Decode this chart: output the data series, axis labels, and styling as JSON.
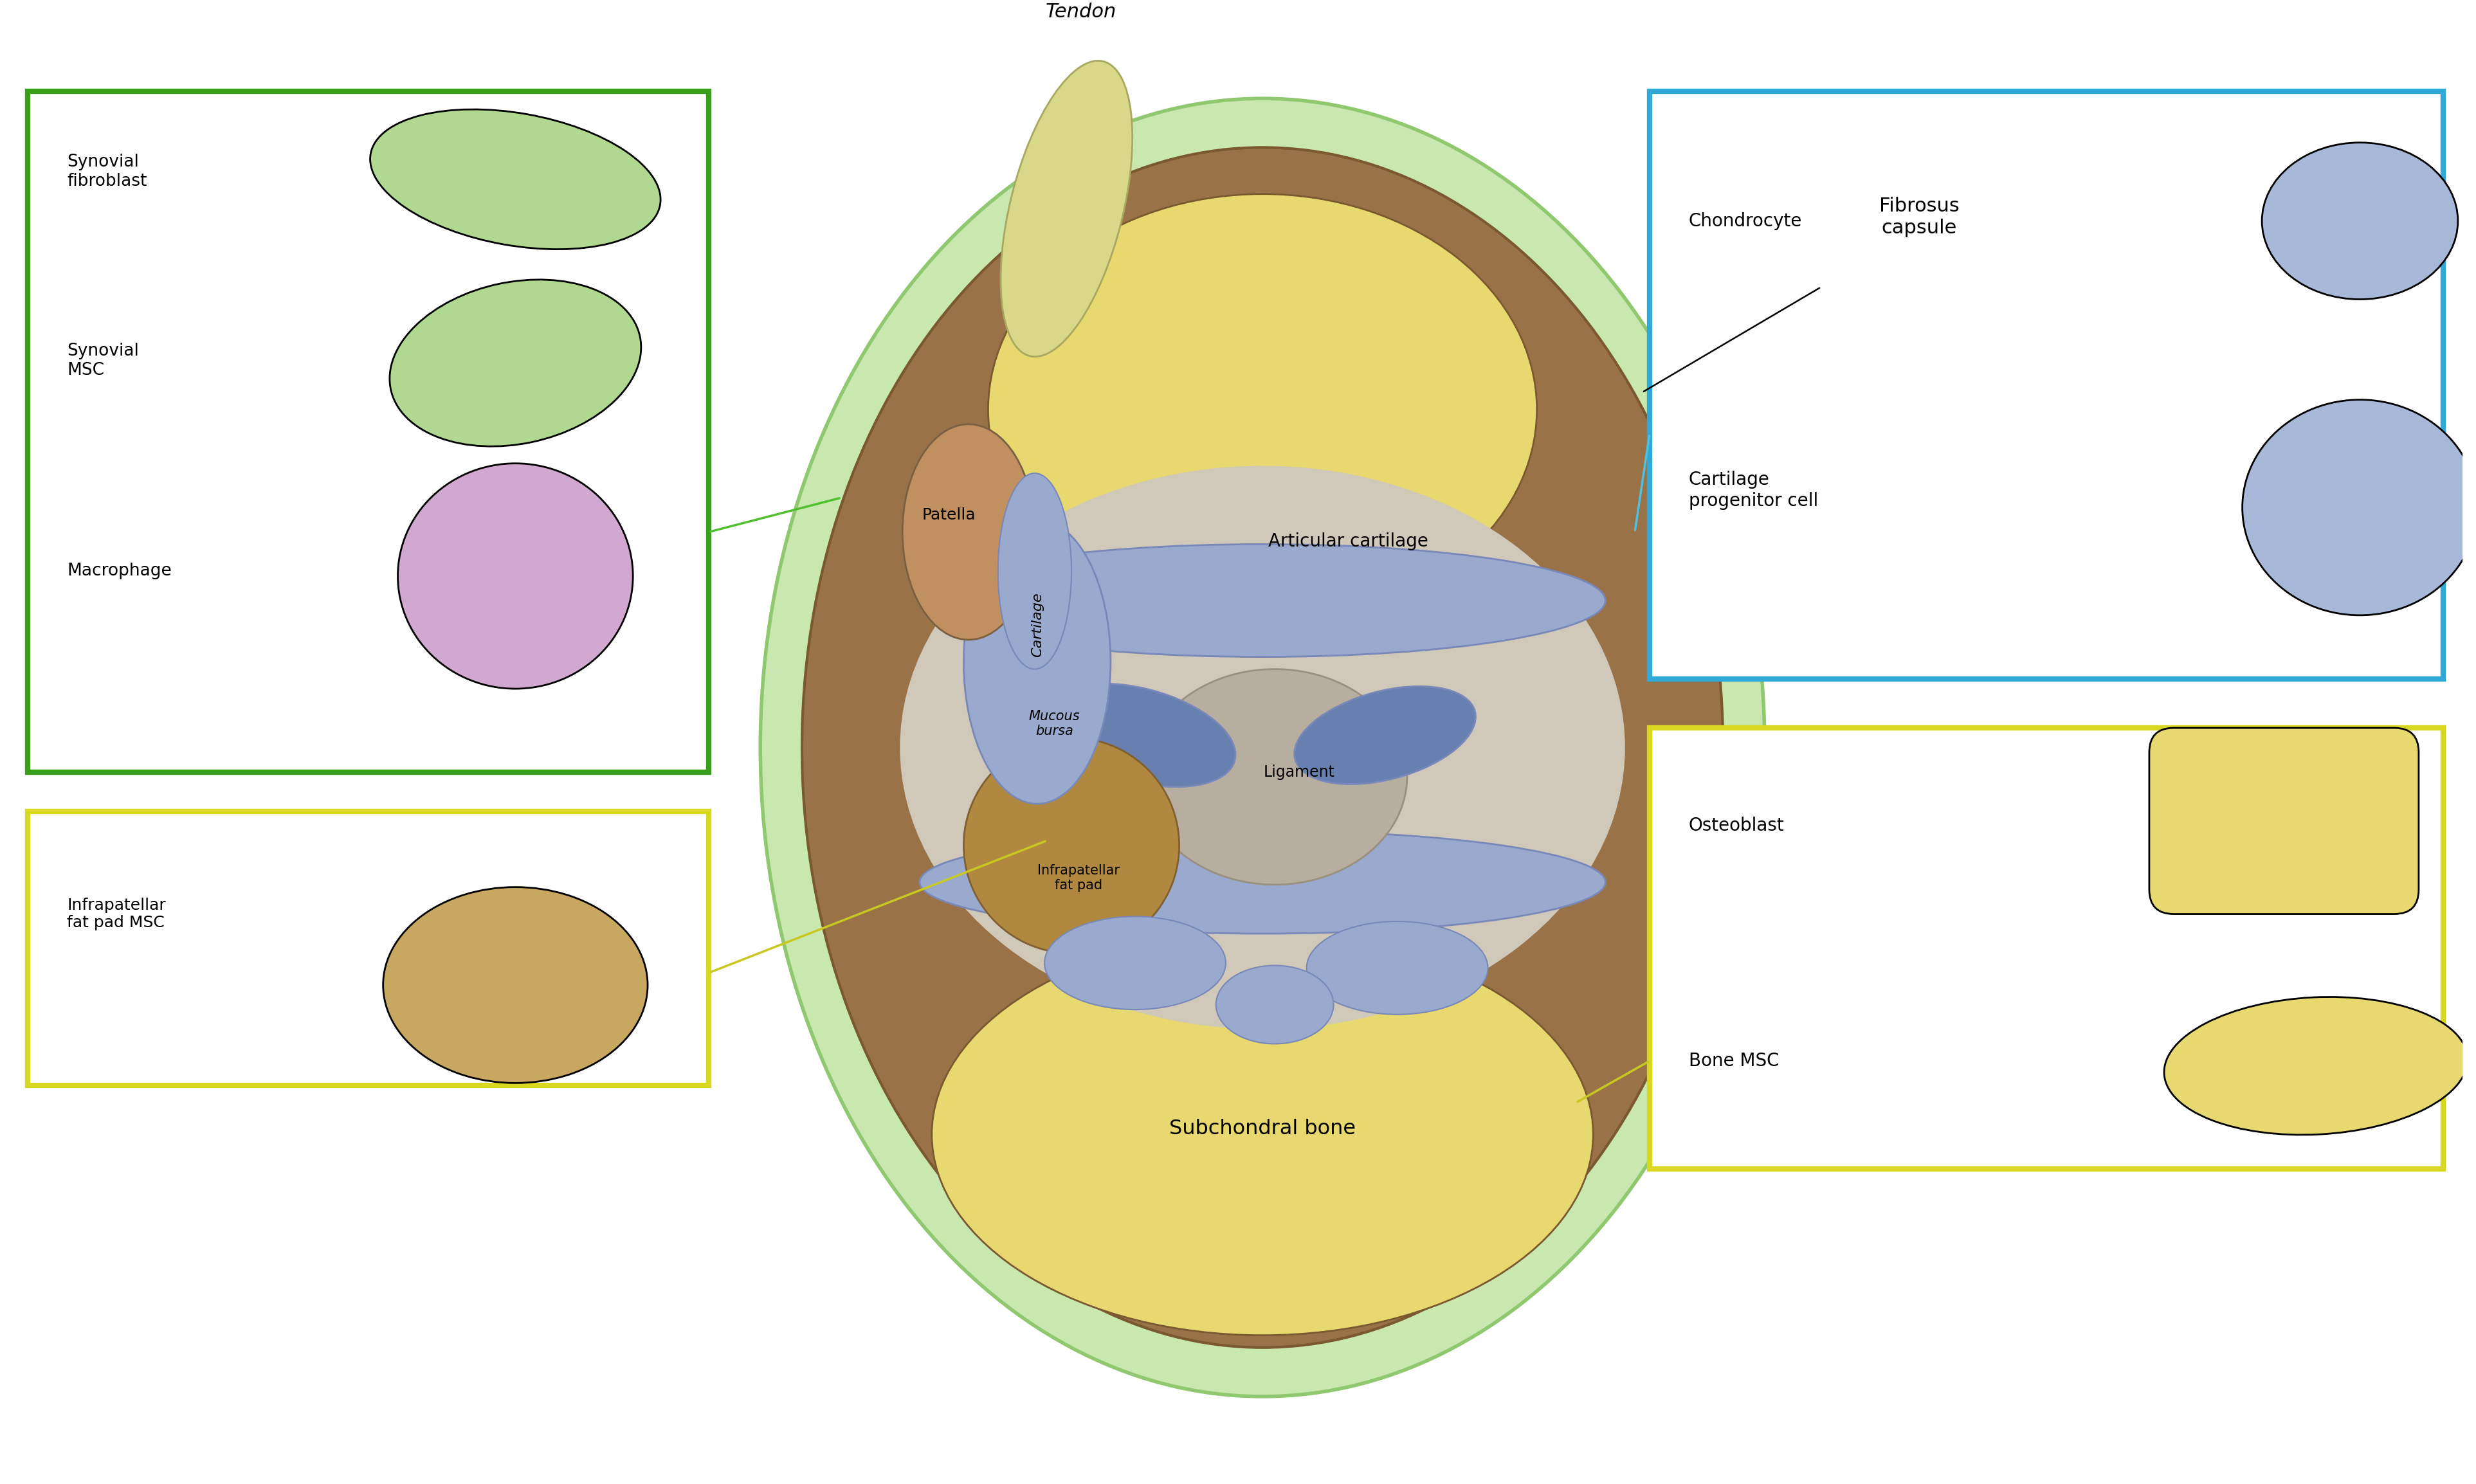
{
  "bg": "#ffffff",
  "c": {
    "bone_yellow": "#e8d870",
    "bone_light": "#f0e898",
    "brown": "#9a7248",
    "brown_dark": "#7a5830",
    "brown_medium": "#b08858",
    "cart_blue": "#7888b8",
    "cart_blue_light": "#99aace",
    "articular_blue": "#6880b0",
    "synovial_green": "#90c870",
    "synovial_light": "#c8e8b0",
    "ligament_gray": "#b8aea0",
    "fat_brown": "#b08840",
    "fat_light": "#c8a860",
    "patella_brown": "#c09060",
    "tendon_yellow": "#d8d888",
    "nucleus": "#1a2858",
    "cell_green": "#b0d890",
    "cell_purple": "#d0a8d0",
    "cell_blue": "#a8b8d8",
    "box_green": "#38a018",
    "box_cyan": "#30a8d8",
    "box_yellow": "#d8d820",
    "arrow_green": "#50c030",
    "arrow_cyan": "#50c0e0",
    "arrow_yellow": "#c8c820",
    "joint_beige": "#d0c8b8",
    "inner_gray": "#c8c0b0"
  },
  "labels": {
    "tendon": "Tendon",
    "patella": "Patella",
    "cartilage": "Cartilage",
    "mucous_bursa": "Mucous\nbursa",
    "infrapatellar": "Infrapatellar\nfat pad",
    "articular_cart": "Articular cartilage",
    "ligament": "Ligament",
    "subchondral": "Subchondral bone",
    "fibrosus": "Fibrosus\ncapsule",
    "synovial_fibroblast": "Synovial\nfibroblast",
    "synovial_msc": "Synovial\nMSC",
    "macrophage": "Macrophage",
    "chondrocyte": "Chondrocyte",
    "cartilage_prog": "Cartilage\nprogenitor cell",
    "osteoblast": "Osteoblast",
    "bone_msc": "Bone MSC",
    "ifp_msc": "Infrapatellar\nfat pad MSC"
  }
}
